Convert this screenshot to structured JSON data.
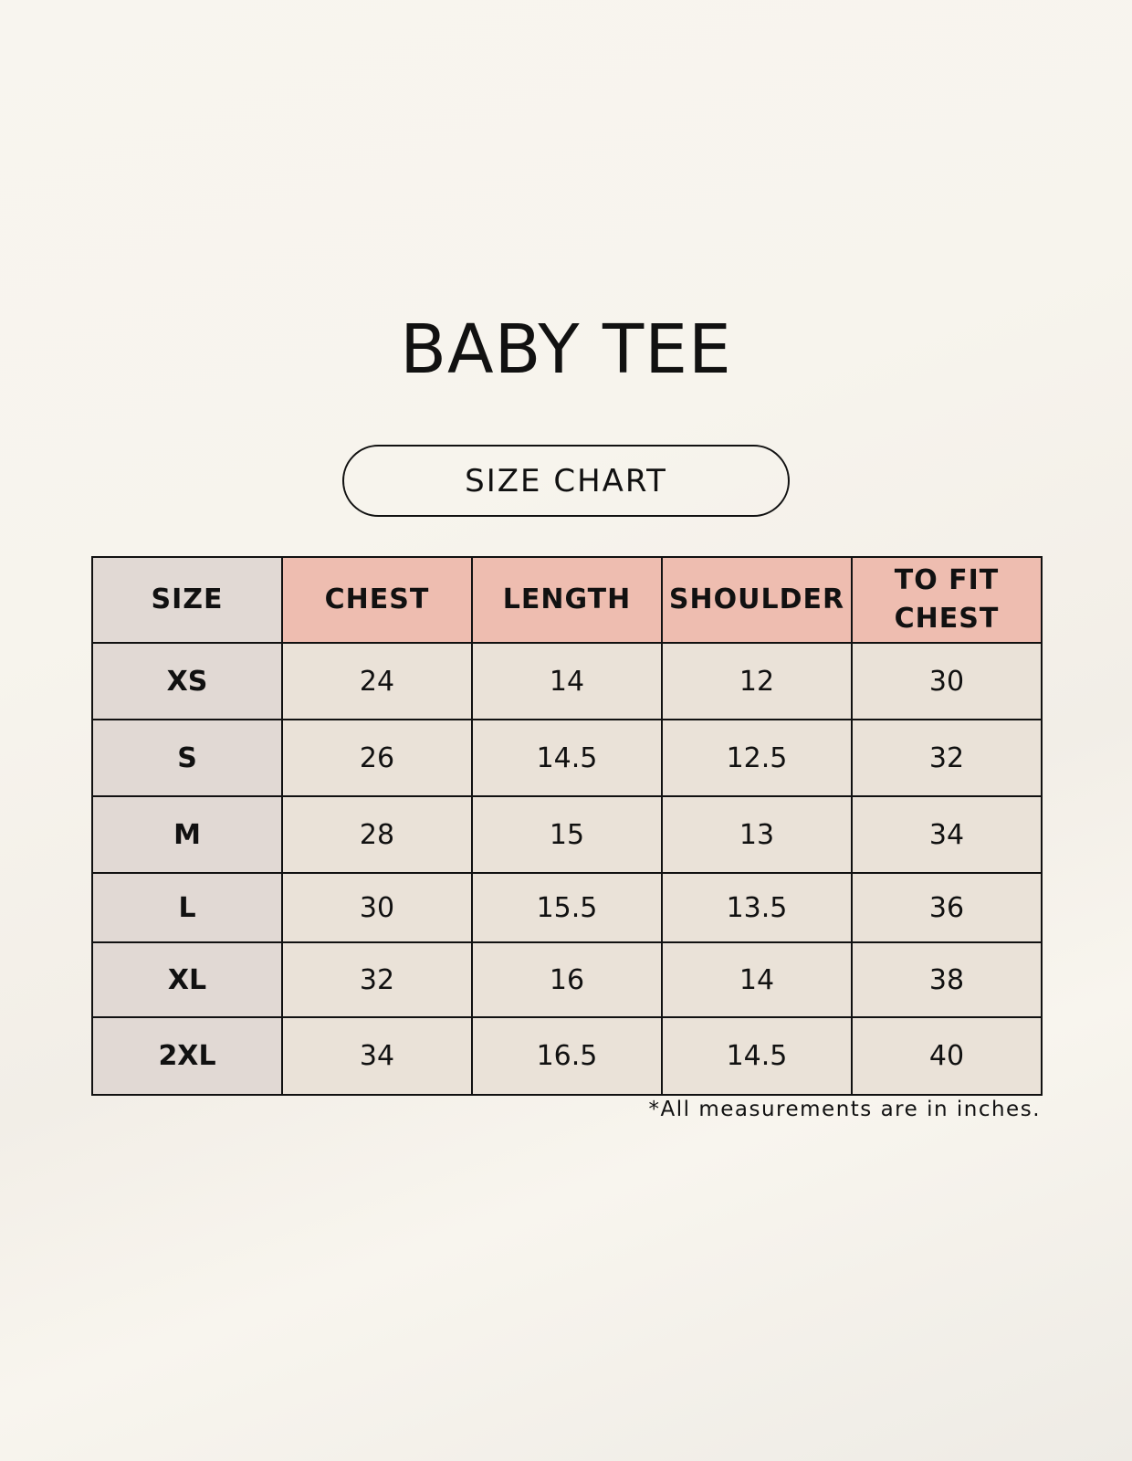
{
  "title": "BABY TEE",
  "subtitle": "SIZE CHART",
  "table": {
    "headers": [
      "SIZE",
      "CHEST",
      "LENGTH",
      "SHOULDER",
      "TO FIT CHEST"
    ],
    "rows": [
      [
        "XS",
        "24",
        "14",
        "12",
        "30"
      ],
      [
        "S",
        "26",
        "14.5",
        "12.5",
        "32"
      ],
      [
        "M",
        "28",
        "15",
        "13",
        "34"
      ],
      [
        "L",
        "30",
        "15.5",
        "13.5",
        "36"
      ],
      [
        "XL",
        "32",
        "16",
        "14",
        "38"
      ],
      [
        "2XL",
        "34",
        "16.5",
        "14.5",
        "40"
      ]
    ]
  },
  "footnote": "*All measurements are in inches.",
  "colors": {
    "header_accent": "#eebdb0",
    "size_column": "#e1d9d4",
    "cell": "#eae2d8"
  }
}
